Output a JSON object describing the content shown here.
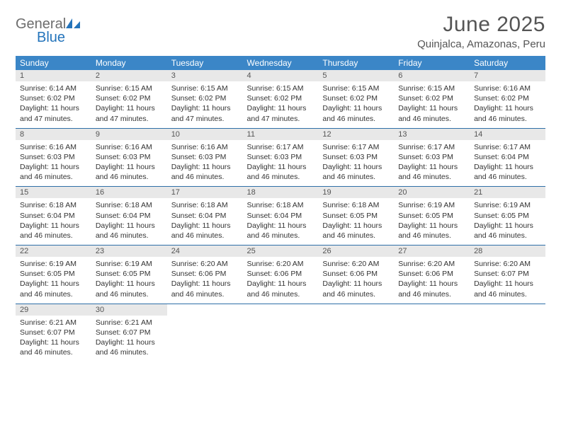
{
  "brand": {
    "word1": "General",
    "word2": "Blue"
  },
  "title": "June 2025",
  "location": "Quinjalca, Amazonas, Peru",
  "colors": {
    "header_bg": "#3b86c7",
    "header_text": "#ffffff",
    "daynum_bg": "#e8e8e8",
    "row_divider": "#2f6fa8",
    "title_color": "#555555",
    "body_text": "#333333"
  },
  "weekdays": [
    "Sunday",
    "Monday",
    "Tuesday",
    "Wednesday",
    "Thursday",
    "Friday",
    "Saturday"
  ],
  "days": [
    {
      "n": 1,
      "sunrise": "6:14 AM",
      "sunset": "6:02 PM",
      "daylight": "11 hours and 47 minutes."
    },
    {
      "n": 2,
      "sunrise": "6:15 AM",
      "sunset": "6:02 PM",
      "daylight": "11 hours and 47 minutes."
    },
    {
      "n": 3,
      "sunrise": "6:15 AM",
      "sunset": "6:02 PM",
      "daylight": "11 hours and 47 minutes."
    },
    {
      "n": 4,
      "sunrise": "6:15 AM",
      "sunset": "6:02 PM",
      "daylight": "11 hours and 47 minutes."
    },
    {
      "n": 5,
      "sunrise": "6:15 AM",
      "sunset": "6:02 PM",
      "daylight": "11 hours and 46 minutes."
    },
    {
      "n": 6,
      "sunrise": "6:15 AM",
      "sunset": "6:02 PM",
      "daylight": "11 hours and 46 minutes."
    },
    {
      "n": 7,
      "sunrise": "6:16 AM",
      "sunset": "6:02 PM",
      "daylight": "11 hours and 46 minutes."
    },
    {
      "n": 8,
      "sunrise": "6:16 AM",
      "sunset": "6:03 PM",
      "daylight": "11 hours and 46 minutes."
    },
    {
      "n": 9,
      "sunrise": "6:16 AM",
      "sunset": "6:03 PM",
      "daylight": "11 hours and 46 minutes."
    },
    {
      "n": 10,
      "sunrise": "6:16 AM",
      "sunset": "6:03 PM",
      "daylight": "11 hours and 46 minutes."
    },
    {
      "n": 11,
      "sunrise": "6:17 AM",
      "sunset": "6:03 PM",
      "daylight": "11 hours and 46 minutes."
    },
    {
      "n": 12,
      "sunrise": "6:17 AM",
      "sunset": "6:03 PM",
      "daylight": "11 hours and 46 minutes."
    },
    {
      "n": 13,
      "sunrise": "6:17 AM",
      "sunset": "6:03 PM",
      "daylight": "11 hours and 46 minutes."
    },
    {
      "n": 14,
      "sunrise": "6:17 AM",
      "sunset": "6:04 PM",
      "daylight": "11 hours and 46 minutes."
    },
    {
      "n": 15,
      "sunrise": "6:18 AM",
      "sunset": "6:04 PM",
      "daylight": "11 hours and 46 minutes."
    },
    {
      "n": 16,
      "sunrise": "6:18 AM",
      "sunset": "6:04 PM",
      "daylight": "11 hours and 46 minutes."
    },
    {
      "n": 17,
      "sunrise": "6:18 AM",
      "sunset": "6:04 PM",
      "daylight": "11 hours and 46 minutes."
    },
    {
      "n": 18,
      "sunrise": "6:18 AM",
      "sunset": "6:04 PM",
      "daylight": "11 hours and 46 minutes."
    },
    {
      "n": 19,
      "sunrise": "6:18 AM",
      "sunset": "6:05 PM",
      "daylight": "11 hours and 46 minutes."
    },
    {
      "n": 20,
      "sunrise": "6:19 AM",
      "sunset": "6:05 PM",
      "daylight": "11 hours and 46 minutes."
    },
    {
      "n": 21,
      "sunrise": "6:19 AM",
      "sunset": "6:05 PM",
      "daylight": "11 hours and 46 minutes."
    },
    {
      "n": 22,
      "sunrise": "6:19 AM",
      "sunset": "6:05 PM",
      "daylight": "11 hours and 46 minutes."
    },
    {
      "n": 23,
      "sunrise": "6:19 AM",
      "sunset": "6:05 PM",
      "daylight": "11 hours and 46 minutes."
    },
    {
      "n": 24,
      "sunrise": "6:20 AM",
      "sunset": "6:06 PM",
      "daylight": "11 hours and 46 minutes."
    },
    {
      "n": 25,
      "sunrise": "6:20 AM",
      "sunset": "6:06 PM",
      "daylight": "11 hours and 46 minutes."
    },
    {
      "n": 26,
      "sunrise": "6:20 AM",
      "sunset": "6:06 PM",
      "daylight": "11 hours and 46 minutes."
    },
    {
      "n": 27,
      "sunrise": "6:20 AM",
      "sunset": "6:06 PM",
      "daylight": "11 hours and 46 minutes."
    },
    {
      "n": 28,
      "sunrise": "6:20 AM",
      "sunset": "6:07 PM",
      "daylight": "11 hours and 46 minutes."
    },
    {
      "n": 29,
      "sunrise": "6:21 AM",
      "sunset": "6:07 PM",
      "daylight": "11 hours and 46 minutes."
    },
    {
      "n": 30,
      "sunrise": "6:21 AM",
      "sunset": "6:07 PM",
      "daylight": "11 hours and 46 minutes."
    }
  ],
  "labels": {
    "sunrise": "Sunrise:",
    "sunset": "Sunset:",
    "daylight": "Daylight:"
  },
  "first_weekday_index": 0,
  "typography": {
    "title_fontsize": 30,
    "subtitle_fontsize": 15,
    "weekday_fontsize": 12,
    "body_fontsize": 10.5
  }
}
